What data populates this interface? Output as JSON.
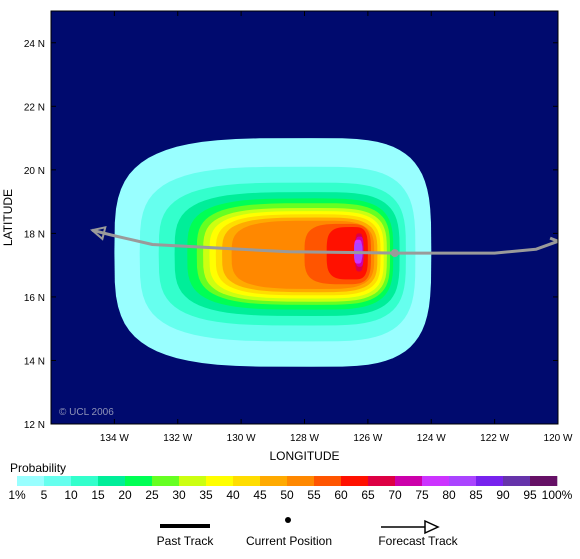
{
  "map": {
    "ocean_color": "#000a6e",
    "axes": {
      "xlabel": "LONGITUDE",
      "ylabel": "LATITUDE",
      "lon_range": [
        -136,
        -120
      ],
      "lat_range": [
        12,
        25
      ],
      "x_ticks": [
        {
          "value": -134,
          "label": "134 W"
        },
        {
          "value": -132,
          "label": "132 W"
        },
        {
          "value": -130,
          "label": "130 W"
        },
        {
          "value": -128,
          "label": "128 W"
        },
        {
          "value": -126,
          "label": "126 W"
        },
        {
          "value": -124,
          "label": "124 W"
        },
        {
          "value": -122,
          "label": "122 W"
        },
        {
          "value": -120,
          "label": "120 W"
        }
      ],
      "y_ticks": [
        {
          "value": 12,
          "label": "12 N"
        },
        {
          "value": 14,
          "label": "14 N"
        },
        {
          "value": 16,
          "label": "16 N"
        },
        {
          "value": 18,
          "label": "18 N"
        },
        {
          "value": 20,
          "label": "20 N"
        },
        {
          "value": 22,
          "label": "22 N"
        },
        {
          "value": 24,
          "label": "24 N"
        }
      ]
    },
    "copyright": "© UCL 2006",
    "probability_contours": [
      {
        "level": 1,
        "color": "#99ffff",
        "lon": [
          -134.0,
          -124.0
        ],
        "lat": [
          13.8,
          21.0
        ]
      },
      {
        "level": 5,
        "color": "#66ffee",
        "lon": [
          -133.2,
          -124.5
        ],
        "lat": [
          14.6,
          20.1
        ]
      },
      {
        "level": 10,
        "color": "#33ffcc",
        "lon": [
          -132.6,
          -124.8
        ],
        "lat": [
          15.1,
          19.6
        ]
      },
      {
        "level": 15,
        "color": "#00ee99",
        "lon": [
          -132.1,
          -125.0
        ],
        "lat": [
          15.4,
          19.3
        ]
      },
      {
        "level": 20,
        "color": "#00ff55",
        "lon": [
          -131.7,
          -125.2
        ],
        "lat": [
          15.6,
          19.1
        ]
      },
      {
        "level": 25,
        "color": "#66ff22",
        "lon": [
          -131.4,
          -125.3
        ],
        "lat": [
          15.75,
          18.95
        ]
      },
      {
        "level": 30,
        "color": "#ccff11",
        "lon": [
          -131.2,
          -125.4
        ],
        "lat": [
          15.85,
          18.8
        ]
      },
      {
        "level": 35,
        "color": "#ffff00",
        "lon": [
          -131.0,
          -125.5
        ],
        "lat": [
          15.95,
          18.7
        ]
      },
      {
        "level": 40,
        "color": "#ffdd00",
        "lon": [
          -130.8,
          -125.6
        ],
        "lat": [
          16.05,
          18.6
        ]
      },
      {
        "level": 45,
        "color": "#ffaa00",
        "lon": [
          -130.6,
          -125.7
        ],
        "lat": [
          16.15,
          18.5
        ]
      },
      {
        "level": 50,
        "color": "#ff8800",
        "lon": [
          -130.3,
          -125.8
        ],
        "lat": [
          16.25,
          18.4
        ]
      },
      {
        "level": 55,
        "color": "#ff5500",
        "lon": [
          -128.0,
          -125.9
        ],
        "lat": [
          16.4,
          18.3
        ]
      },
      {
        "level": 60,
        "color": "#ff1100",
        "lon": [
          -127.3,
          -126.0
        ],
        "lat": [
          16.55,
          18.2
        ]
      },
      {
        "level": 65,
        "color": "#dd0044",
        "lon": [
          -126.4,
          -126.2
        ],
        "lat": [
          16.8,
          18.0
        ]
      },
      {
        "level": 70,
        "color": "#cc00aa",
        "lon": [
          -126.2,
          -126.3
        ],
        "lat": [
          16.95,
          17.9
        ]
      },
      {
        "level": 75,
        "color": "#cc33ff",
        "lon": [
          -126.0,
          -126.5
        ],
        "lat": [
          17.05,
          17.8
        ]
      },
      {
        "level": 80,
        "color": "#aa44ff",
        "lon": [
          -125.8,
          -126.6
        ],
        "lat": [
          17.15,
          17.7
        ]
      }
    ],
    "past_track": [
      [
        -120.0,
        17.75
      ],
      [
        -120.25,
        17.85
      ]
    ],
    "forecast_track": [
      [
        -120.0,
        17.75
      ],
      [
        -120.7,
        17.5
      ],
      [
        -122.0,
        17.38
      ],
      [
        -125.1,
        17.38
      ],
      [
        -128.5,
        17.42
      ],
      [
        -132.8,
        17.65
      ],
      [
        -134.1,
        17.95
      ],
      [
        -134.7,
        18.1
      ]
    ],
    "current_position": {
      "lon": -125.15,
      "lat": 17.38
    }
  },
  "legend": {
    "title": "Probability",
    "colors": [
      "#99ffff",
      "#66ffee",
      "#33ffcc",
      "#00ee99",
      "#00ff55",
      "#66ff22",
      "#ccff11",
      "#ffff00",
      "#ffdd00",
      "#ffaa00",
      "#ff8800",
      "#ff5500",
      "#ff1100",
      "#dd0044",
      "#cc00aa",
      "#cc33ff",
      "#aa44ff",
      "#7722ee",
      "#6633aa",
      "#661166"
    ],
    "labels": [
      "1%",
      "5",
      "10",
      "15",
      "20",
      "25",
      "30",
      "35",
      "40",
      "45",
      "50",
      "55",
      "60",
      "65",
      "70",
      "75",
      "80",
      "85",
      "90",
      "95",
      "100%"
    ]
  },
  "track_legend": {
    "past": "Past Track",
    "current": "Current Position",
    "forecast": "Forecast Track"
  }
}
